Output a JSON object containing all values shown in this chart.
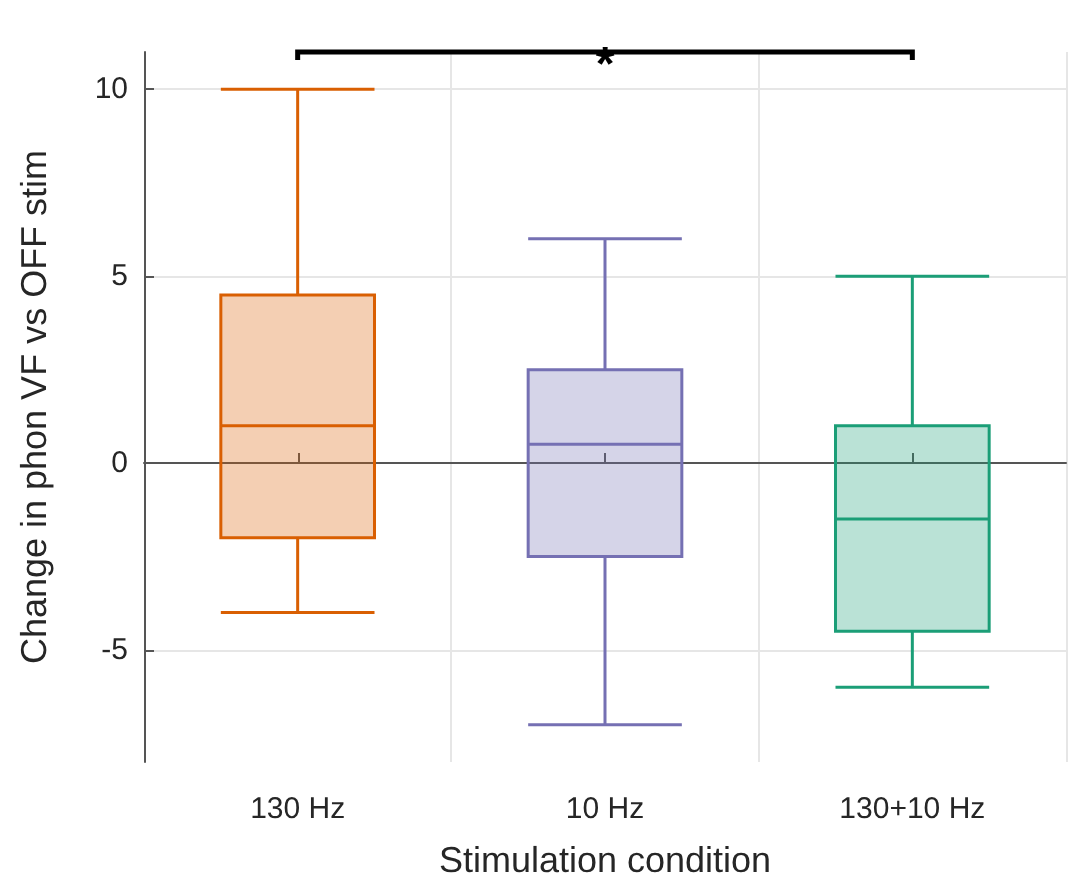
{
  "chart_data": {
    "type": "box",
    "xlabel": "Stimulation condition",
    "ylabel": "Change in phon VF vs OFF stim",
    "categories": [
      "130 Hz",
      "10 Hz",
      "130+10 Hz"
    ],
    "colors": [
      "#d95f02",
      "#7570b3",
      "#1b9e77"
    ],
    "boxes": [
      {
        "low": -4,
        "q1": -2,
        "median": 1,
        "q3": 4.5,
        "high": 10
      },
      {
        "low": -7,
        "q1": -2.5,
        "median": 0.5,
        "q3": 2.5,
        "high": 6
      },
      {
        "low": -6,
        "q1": -4.5,
        "median": -1.5,
        "q3": 1,
        "high": 5
      }
    ],
    "ylim": [
      -8,
      11
    ],
    "yticks": [
      -5,
      0,
      5,
      10
    ],
    "grid": true,
    "annotations": [
      "*"
    ]
  }
}
